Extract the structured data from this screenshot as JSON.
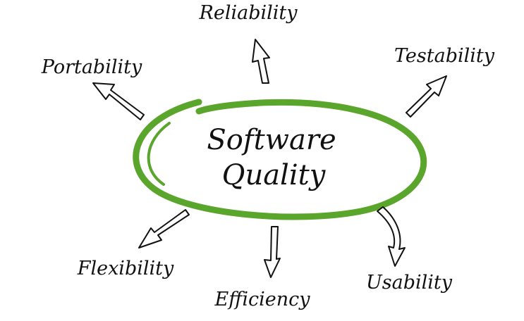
{
  "diagram": {
    "center": {
      "line1": "Software",
      "line2": "Quality",
      "ring_color": "#5aa52c"
    },
    "attributes": [
      {
        "id": "reliability",
        "label": "Reliability"
      },
      {
        "id": "testability",
        "label": "Testability"
      },
      {
        "id": "portability",
        "label": "Portability"
      },
      {
        "id": "flexibility",
        "label": "Flexibility"
      },
      {
        "id": "efficiency",
        "label": "Efficiency"
      },
      {
        "id": "usability",
        "label": "Usability"
      }
    ]
  }
}
